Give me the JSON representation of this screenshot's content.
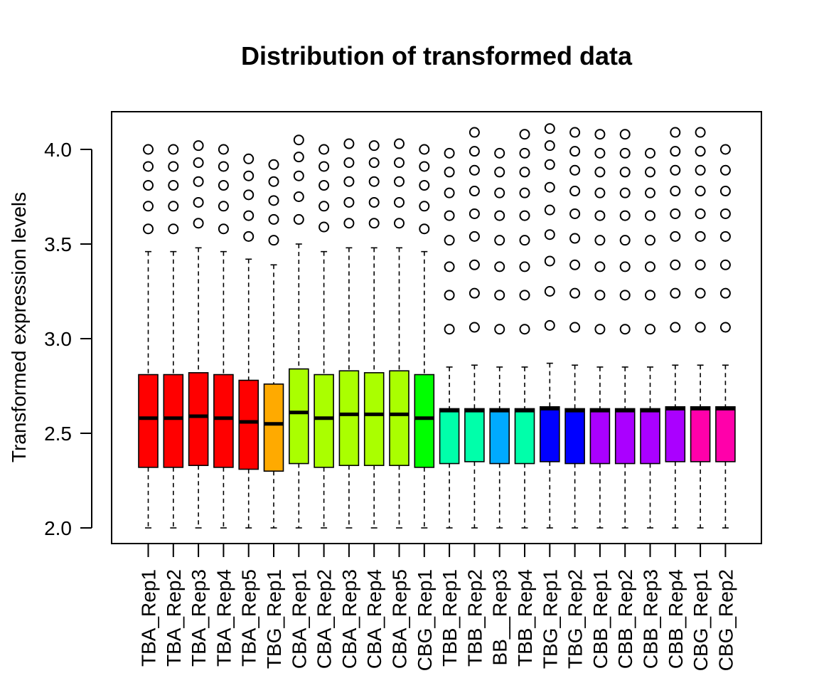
{
  "chart_data": {
    "type": "boxplot",
    "title": "Distribution of transformed data",
    "ylabel": "Transformed expression levels",
    "xlabel": "",
    "ylim": [
      1.92,
      4.2
    ],
    "yticks": [
      "2.0",
      "2.5",
      "3.0",
      "3.5",
      "4.0"
    ],
    "ytick_values": [
      2.0,
      2.5,
      3.0,
      3.5,
      4.0
    ],
    "categories": [
      "TBA_Rep1",
      "TBA_Rep2",
      "TBA_Rep3",
      "TBA_Rep4",
      "TBA_Rep5",
      "TBG_Rep1",
      "CBA_Rep1",
      "CBA_Rep2",
      "CBA_Rep3",
      "CBA_Rep4",
      "CBA_Rep5",
      "CBG_Rep1",
      "TBB_Rep1",
      "TBB_Rep2",
      "BB__Rep3",
      "TBB_Rep4",
      "TBG_Rep1",
      "TBG_Rep2",
      "CBB_Rep1",
      "CBB_Rep2",
      "CBB_Rep3",
      "CBB_Rep4",
      "CBG_Rep1",
      "CBG_Rep2"
    ],
    "colors": [
      "#ff0000",
      "#ff0000",
      "#ff0000",
      "#ff0000",
      "#ff0000",
      "#ffaa00",
      "#aaff00",
      "#aaff00",
      "#aaff00",
      "#aaff00",
      "#aaff00",
      "#00ff00",
      "#00ffaa",
      "#00ffaa",
      "#00aaff",
      "#00ffaa",
      "#0000ff",
      "#0000ff",
      "#aa00ff",
      "#aa00ff",
      "#aa00ff",
      "#aa00ff",
      "#ff00aa",
      "#ff00aa"
    ],
    "boxes": [
      {
        "min": 2.0,
        "q1": 2.32,
        "median": 2.58,
        "q3": 2.81,
        "max": 3.46,
        "outliers": [
          3.58,
          3.7,
          3.81,
          3.91,
          4.0
        ]
      },
      {
        "min": 2.0,
        "q1": 2.32,
        "median": 2.58,
        "q3": 2.81,
        "max": 3.46,
        "outliers": [
          3.58,
          3.7,
          3.81,
          3.91,
          4.0
        ]
      },
      {
        "min": 2.0,
        "q1": 2.33,
        "median": 2.59,
        "q3": 2.82,
        "max": 3.48,
        "outliers": [
          3.61,
          3.72,
          3.83,
          3.93,
          4.02
        ]
      },
      {
        "min": 2.0,
        "q1": 2.32,
        "median": 2.58,
        "q3": 2.81,
        "max": 3.46,
        "outliers": [
          3.58,
          3.7,
          3.81,
          3.91,
          4.0
        ]
      },
      {
        "min": 2.0,
        "q1": 2.31,
        "median": 2.56,
        "q3": 2.78,
        "max": 3.42,
        "outliers": [
          3.54,
          3.65,
          3.76,
          3.86,
          3.95
        ]
      },
      {
        "min": 2.0,
        "q1": 2.3,
        "median": 2.55,
        "q3": 2.76,
        "max": 3.39,
        "outliers": [
          3.52,
          3.63,
          3.73,
          3.83,
          3.92
        ]
      },
      {
        "min": 2.0,
        "q1": 2.34,
        "median": 2.61,
        "q3": 2.84,
        "max": 3.5,
        "outliers": [
          3.63,
          3.75,
          3.86,
          3.96,
          4.05
        ]
      },
      {
        "min": 2.0,
        "q1": 2.32,
        "median": 2.58,
        "q3": 2.81,
        "max": 3.46,
        "outliers": [
          3.59,
          3.7,
          3.81,
          3.91,
          4.0
        ]
      },
      {
        "min": 2.0,
        "q1": 2.33,
        "median": 2.6,
        "q3": 2.83,
        "max": 3.48,
        "outliers": [
          3.61,
          3.72,
          3.83,
          3.93,
          4.03
        ]
      },
      {
        "min": 2.0,
        "q1": 2.33,
        "median": 2.6,
        "q3": 2.82,
        "max": 3.48,
        "outliers": [
          3.61,
          3.72,
          3.83,
          3.93,
          4.02
        ]
      },
      {
        "min": 2.0,
        "q1": 2.33,
        "median": 2.6,
        "q3": 2.83,
        "max": 3.48,
        "outliers": [
          3.61,
          3.72,
          3.83,
          3.93,
          4.03
        ]
      },
      {
        "min": 2.0,
        "q1": 2.32,
        "median": 2.58,
        "q3": 2.81,
        "max": 3.46,
        "outliers": [
          3.58,
          3.7,
          3.81,
          3.91,
          4.0
        ]
      },
      {
        "min": 2.0,
        "q1": 2.34,
        "median": 2.62,
        "q3": 2.63,
        "max": 2.85,
        "outliers": [
          3.05,
          3.23,
          3.38,
          3.52,
          3.65,
          3.77,
          3.88,
          3.98
        ]
      },
      {
        "min": 2.0,
        "q1": 2.35,
        "median": 2.62,
        "q3": 2.63,
        "max": 2.86,
        "outliers": [
          3.06,
          3.24,
          3.39,
          3.54,
          3.66,
          3.78,
          3.89,
          3.99,
          4.09
        ]
      },
      {
        "min": 2.0,
        "q1": 2.34,
        "median": 2.62,
        "q3": 2.63,
        "max": 2.85,
        "outliers": [
          3.05,
          3.23,
          3.38,
          3.52,
          3.65,
          3.77,
          3.88,
          3.98
        ]
      },
      {
        "min": 2.0,
        "q1": 2.34,
        "median": 2.62,
        "q3": 2.63,
        "max": 2.85,
        "outliers": [
          3.05,
          3.23,
          3.38,
          3.52,
          3.65,
          3.77,
          3.88,
          3.98,
          4.08
        ]
      },
      {
        "min": 2.0,
        "q1": 2.35,
        "median": 2.63,
        "q3": 2.64,
        "max": 2.87,
        "outliers": [
          3.07,
          3.25,
          3.41,
          3.55,
          3.68,
          3.8,
          3.92,
          4.02,
          4.11
        ]
      },
      {
        "min": 2.0,
        "q1": 2.34,
        "median": 2.62,
        "q3": 2.63,
        "max": 2.86,
        "outliers": [
          3.06,
          3.24,
          3.39,
          3.53,
          3.66,
          3.78,
          3.89,
          3.99,
          4.09
        ]
      },
      {
        "min": 2.0,
        "q1": 2.34,
        "median": 2.62,
        "q3": 2.63,
        "max": 2.85,
        "outliers": [
          3.05,
          3.23,
          3.38,
          3.52,
          3.65,
          3.77,
          3.88,
          3.98,
          4.08
        ]
      },
      {
        "min": 2.0,
        "q1": 2.34,
        "median": 2.62,
        "q3": 2.63,
        "max": 2.85,
        "outliers": [
          3.05,
          3.23,
          3.38,
          3.52,
          3.65,
          3.77,
          3.88,
          3.98,
          4.08
        ]
      },
      {
        "min": 2.0,
        "q1": 2.34,
        "median": 2.62,
        "q3": 2.63,
        "max": 2.85,
        "outliers": [
          3.05,
          3.23,
          3.38,
          3.52,
          3.65,
          3.77,
          3.88,
          3.98
        ]
      },
      {
        "min": 2.0,
        "q1": 2.35,
        "median": 2.63,
        "q3": 2.64,
        "max": 2.86,
        "outliers": [
          3.06,
          3.24,
          3.39,
          3.54,
          3.66,
          3.78,
          3.89,
          3.99,
          4.09
        ]
      },
      {
        "min": 2.0,
        "q1": 2.35,
        "median": 2.63,
        "q3": 2.64,
        "max": 2.86,
        "outliers": [
          3.06,
          3.24,
          3.39,
          3.54,
          3.66,
          3.78,
          3.89,
          3.99,
          4.09
        ]
      },
      {
        "min": 2.0,
        "q1": 2.35,
        "median": 2.63,
        "q3": 2.64,
        "max": 2.86,
        "outliers": [
          3.06,
          3.24,
          3.39,
          3.54,
          3.66,
          3.78,
          3.89,
          4.0
        ]
      }
    ],
    "grid": false,
    "legend": "none"
  }
}
